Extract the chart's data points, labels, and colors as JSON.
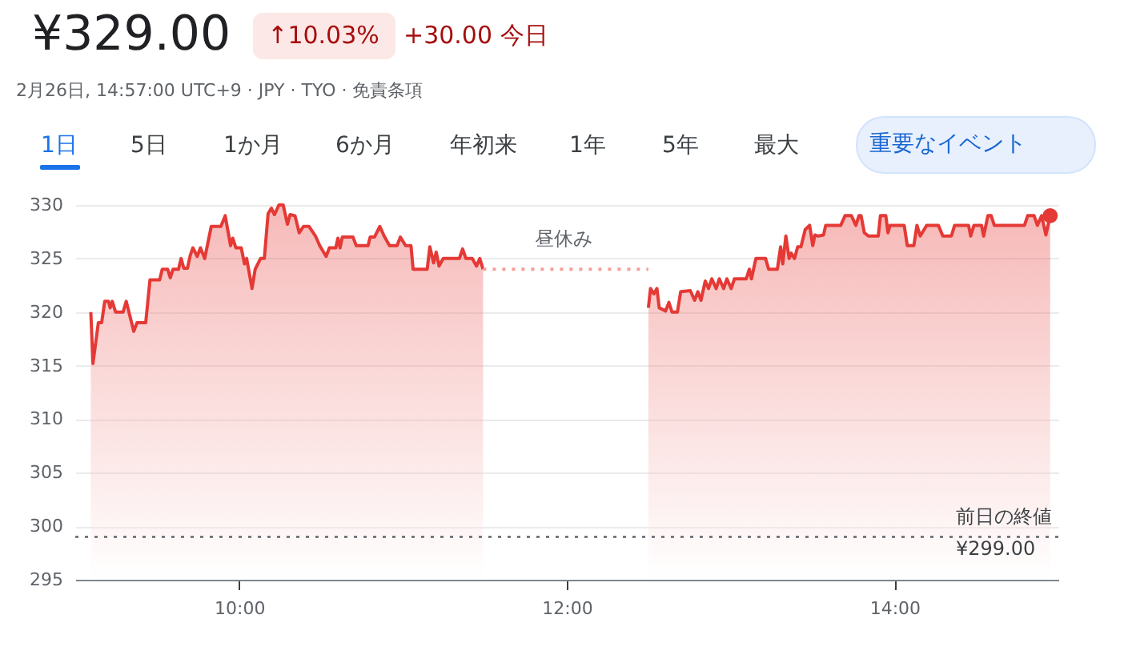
{
  "chart_data": {
    "type": "area",
    "title": "¥329.00",
    "subtitle": "2月26日, 14:57:00 UTC+9 · JPY · TYO · 免責条項",
    "annotations": [
      "↑10.03%",
      "+30.00 今日",
      "1日",
      "5日",
      "1か月",
      "6か月",
      "年初来",
      "1年",
      "5年",
      "最大",
      "重要なイベント",
      "昼休み"
    ],
    "xlim": [
      9,
      15
    ],
    "xticks": [
      {
        "value": 10,
        "label": "10:00"
      },
      {
        "value": 12,
        "label": "12:00"
      },
      {
        "value": 14,
        "label": "14:00"
      }
    ],
    "ylim": [
      295,
      330
    ],
    "yticks": [
      295,
      300,
      305,
      310,
      315,
      320,
      325,
      330
    ],
    "grid": "y",
    "ref_lines": [
      {
        "axis": "y",
        "value": 299,
        "label": "前日の終値 ¥299.00",
        "line_style": "dotted",
        "color": "#5f6368"
      }
    ],
    "series": [
      {
        "color": "#e53935",
        "x": [
          9.095,
          9.108,
          9.141,
          9.161,
          9.18,
          9.203,
          9.213,
          9.226,
          9.246,
          9.292,
          9.311,
          9.357,
          9.377,
          9.43,
          9.456,
          9.515,
          9.531,
          9.564,
          9.58,
          9.597,
          9.63,
          9.646,
          9.662,
          9.685,
          9.702,
          9.718,
          9.744,
          9.764,
          9.79,
          9.83,
          9.889,
          9.915,
          9.948,
          9.961,
          9.98,
          10.013,
          10.033,
          10.046,
          10.079,
          10.098,
          10.131,
          10.154,
          10.177,
          10.197,
          10.216,
          10.243,
          10.269,
          10.295,
          10.311,
          10.341,
          10.367,
          10.393,
          10.426,
          10.466,
          10.492,
          10.531,
          10.551,
          10.59,
          10.603,
          10.616,
          10.63,
          10.695,
          10.715,
          10.787,
          10.8,
          10.826,
          10.859,
          10.885,
          10.918,
          10.964,
          10.984,
          11.016,
          11.049,
          11.062,
          11.148,
          11.164,
          11.187,
          11.203,
          11.22,
          11.246,
          11.344,
          11.364,
          11.384,
          11.423,
          11.449,
          11.469,
          11.489
        ],
        "values": [
          320,
          315.2,
          319,
          319,
          321,
          321,
          320.4,
          321,
          320,
          320,
          321,
          318.2,
          319,
          319,
          323,
          323,
          324,
          324,
          323.2,
          324,
          324,
          325,
          324.1,
          324.1,
          325.3,
          326,
          325.2,
          326,
          325,
          328,
          328,
          329,
          326.2,
          326.9,
          326,
          326,
          324.5,
          325,
          322.2,
          324,
          325,
          325,
          329.2,
          329.7,
          329.1,
          330,
          330,
          328.2,
          329.1,
          329,
          327.4,
          328,
          328,
          327.1,
          326.2,
          325.2,
          326,
          326,
          326.9,
          326,
          327,
          327,
          326.2,
          326.2,
          327,
          327,
          328,
          327.1,
          326.2,
          326.2,
          327,
          326.2,
          326.2,
          324,
          324,
          326.1,
          324.6,
          325.6,
          324.3,
          325,
          325,
          325.9,
          325,
          325,
          324.3,
          325,
          324
        ]
      },
      {
        "color": "#e53935",
        "x": [
          12.498,
          12.511,
          12.531,
          12.55,
          12.564,
          12.603,
          12.623,
          12.642,
          12.675,
          12.695,
          12.754,
          12.78,
          12.8,
          12.819,
          12.845,
          12.865,
          12.885,
          12.911,
          12.931,
          12.957,
          12.977,
          13.003,
          13.023,
          13.095,
          13.114,
          13.127,
          13.154,
          13.213,
          13.232,
          13.285,
          13.305,
          13.318,
          13.337,
          13.357,
          13.37,
          13.39,
          13.409,
          13.429,
          13.455,
          13.482,
          13.501,
          13.514,
          13.534,
          13.567,
          13.58,
          13.672,
          13.698,
          13.737,
          13.764,
          13.783,
          13.796,
          13.816,
          13.842,
          13.901,
          13.914,
          13.947,
          13.96,
          13.973,
          14.039,
          14.059,
          14.078,
          14.118,
          14.137,
          14.157,
          14.196,
          14.268,
          14.295,
          14.347,
          14.367,
          14.452,
          14.465,
          14.485,
          14.531,
          14.544,
          14.57,
          14.59,
          14.609,
          14.793,
          14.813,
          14.852,
          14.872,
          14.898,
          14.924,
          14.95
        ],
        "values": [
          320.4,
          322.2,
          321.7,
          322.2,
          320.4,
          320.1,
          320.9,
          320,
          320,
          321.9,
          322,
          321.1,
          321.9,
          321.1,
          322.9,
          322.2,
          323.1,
          322.2,
          323.1,
          322.2,
          323.1,
          322.2,
          323.1,
          323.1,
          324,
          323.1,
          325,
          325,
          324,
          324,
          326.1,
          324.5,
          327.1,
          325,
          325.5,
          325,
          326.1,
          326.1,
          327.7,
          328.1,
          326.2,
          327.2,
          327.1,
          327.2,
          328.1,
          328.1,
          329,
          329,
          328.1,
          329,
          329,
          327.4,
          327.1,
          327.1,
          329,
          329,
          327.4,
          328.1,
          328.1,
          328.1,
          326.2,
          326.2,
          328.1,
          327.1,
          328.1,
          328.1,
          327.1,
          327.1,
          328.1,
          328.1,
          327.1,
          328.1,
          328.1,
          327.1,
          329,
          329,
          328.1,
          328.1,
          329,
          329,
          328.1,
          329,
          327.2,
          329
        ]
      },
      {
        "type": "line",
        "color": "#f4a09a",
        "line_style": "dotted",
        "x": [
          11.489,
          12.498
        ],
        "values": [
          324,
          324
        ]
      },
      {
        "type": "scatter",
        "color": "#e53935",
        "marker": "circle",
        "x": [
          14.95
        ],
        "values": [
          329
        ]
      }
    ]
  }
}
